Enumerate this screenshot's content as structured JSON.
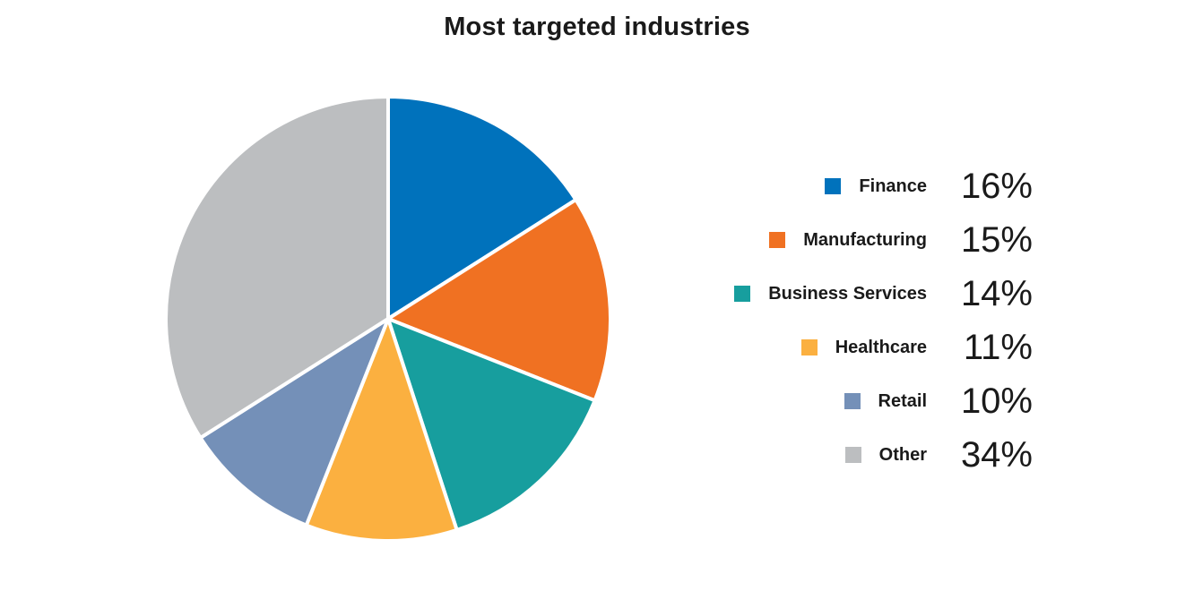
{
  "chart_data": {
    "type": "pie",
    "title": "Most targeted industries",
    "categories": [
      "Finance",
      "Manufacturing",
      "Business Services",
      "Healthcare",
      "Retail",
      "Other"
    ],
    "values": [
      16,
      15,
      14,
      11,
      10,
      34
    ],
    "value_labels": [
      "16%",
      "15%",
      "14%",
      "11%",
      "10%",
      "34%"
    ],
    "colors": [
      "#0072bc",
      "#f07122",
      "#179e9e",
      "#fbb040",
      "#7490b8",
      "#bcbec0"
    ],
    "legend_position": "right",
    "start_angle": "12 o'clock",
    "direction": "clockwise"
  }
}
